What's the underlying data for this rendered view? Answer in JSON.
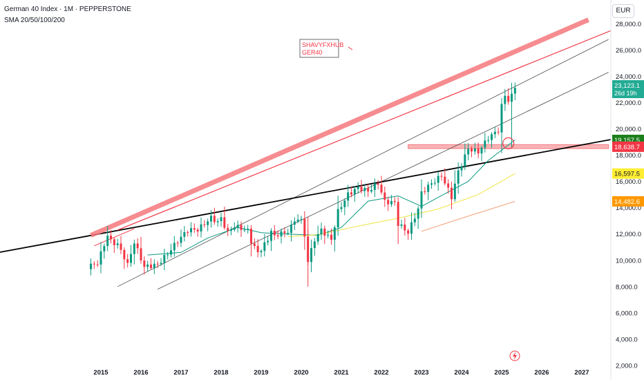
{
  "header": {
    "title": "German 40 Index · 1M · PEPPERSTONE",
    "indicator": "SMA 20/50/100/200"
  },
  "currency_button": "EUR",
  "annotation": {
    "line1": "SHAVYFXHUB",
    "line2": "GER40"
  },
  "colors": {
    "up": "#089981",
    "down": "#f23645",
    "price_tag": "#22ab94",
    "sma20": "#089981",
    "sma50": "#f0e442",
    "sma100": "#f4a07a",
    "resistance": "#f4787c",
    "trend": "#000000"
  },
  "chart_data": {
    "type": "candlestick",
    "x_ticks": [
      "2015",
      "2016",
      "2017",
      "2018",
      "2019",
      "2020",
      "2021",
      "2022",
      "2023",
      "2024",
      "2025",
      "2026",
      "2027"
    ],
    "y_ticks": [
      "2,000.0",
      "4,000.0",
      "6,000.0",
      "8,000.0",
      "10,000.0",
      "12,000.0",
      "14,000.0",
      "16,000.0",
      "18,000.0",
      "20,000.0",
      "22,000.0",
      "24,000.0",
      "26,000.0",
      "28,000.0"
    ],
    "ylim": [
      1000,
      29800
    ],
    "price_labels": [
      {
        "value": 23123.1,
        "text": "23,123.1",
        "sub": "26d 19h",
        "color": "#22ab94",
        "text_color": "#ffffff"
      },
      {
        "value": 19157.5,
        "text": "19,157.5",
        "color": "#1b7f1b",
        "text_color": "#ffffff"
      },
      {
        "value": 18638.7,
        "text": "18,638.7",
        "color": "#f23645",
        "text_color": "#ffffff"
      },
      {
        "value": 16597.5,
        "text": "16,597.5",
        "color": "#ffee33",
        "text_color": "#131722"
      },
      {
        "value": 14482.6,
        "text": "14,482.6",
        "color": "#ff9800",
        "text_color": "#ffffff"
      }
    ],
    "anchors": [
      [
        "2014-09",
        9500
      ],
      [
        "2014-12",
        9800
      ],
      [
        "2015-03",
        11900
      ],
      [
        "2015-04",
        11450
      ],
      [
        "2015-06",
        11200
      ],
      [
        "2015-08",
        10250
      ],
      [
        "2015-09",
        9650
      ],
      [
        "2015-11",
        11380
      ],
      [
        "2015-12",
        10740
      ],
      [
        "2016-02",
        9500
      ],
      [
        "2016-06",
        9680
      ],
      [
        "2016-09",
        10510
      ],
      [
        "2016-12",
        11480
      ],
      [
        "2017-03",
        12310
      ],
      [
        "2017-06",
        12330
      ],
      [
        "2017-10",
        13230
      ],
      [
        "2017-12",
        12920
      ],
      [
        "2018-01",
        13190
      ],
      [
        "2018-03",
        12100
      ],
      [
        "2018-05",
        12600
      ],
      [
        "2018-09",
        12250
      ],
      [
        "2018-10",
        11450
      ],
      [
        "2018-12",
        10560
      ],
      [
        "2019-03",
        11530
      ],
      [
        "2019-04",
        12340
      ],
      [
        "2019-05",
        11730
      ],
      [
        "2019-07",
        12190
      ],
      [
        "2019-08",
        11940
      ],
      [
        "2019-12",
        13250
      ],
      [
        "2020-01",
        12980
      ],
      [
        "2020-02",
        11890
      ],
      [
        "2020-03",
        9940
      ],
      [
        "2020-05",
        11590
      ],
      [
        "2020-07",
        12310
      ],
      [
        "2020-10",
        11560
      ],
      [
        "2020-12",
        13720
      ],
      [
        "2021-03",
        15010
      ],
      [
        "2021-06",
        15530
      ],
      [
        "2021-09",
        15260
      ],
      [
        "2021-12",
        15880
      ],
      [
        "2022-02",
        14460
      ],
      [
        "2022-05",
        14390
      ],
      [
        "2022-06",
        12780
      ],
      [
        "2022-09",
        12110
      ],
      [
        "2022-12",
        13920
      ],
      [
        "2023-01",
        15130
      ],
      [
        "2023-03",
        15630
      ],
      [
        "2023-07",
        16450
      ],
      [
        "2023-10",
        14810
      ],
      [
        "2023-12",
        16750
      ],
      [
        "2024-03",
        18490
      ],
      [
        "2024-06",
        18240
      ],
      [
        "2024-09",
        19320
      ],
      [
        "2024-12",
        19900
      ],
      [
        "2025-01",
        21730
      ],
      [
        "2025-02",
        22550
      ],
      [
        "2025-03",
        22160
      ],
      [
        "2025-04",
        22500
      ],
      [
        "2025-05",
        23123
      ]
    ],
    "sma": [
      {
        "period": 20,
        "color": "#089981",
        "points": [
          [
            "2016-03",
            10400
          ],
          [
            "2017-01",
            10600
          ],
          [
            "2017-09",
            11700
          ],
          [
            "2018-06",
            12500
          ],
          [
            "2019-01",
            12100
          ],
          [
            "2019-09",
            12000
          ],
          [
            "2020-06",
            11900
          ],
          [
            "2021-01",
            12500
          ],
          [
            "2021-09",
            14500
          ],
          [
            "2022-06",
            14900
          ],
          [
            "2023-01",
            14100
          ],
          [
            "2023-09",
            15200
          ],
          [
            "2024-03",
            16000
          ],
          [
            "2024-09",
            17600
          ],
          [
            "2025-05",
            19157.5
          ]
        ]
      },
      {
        "period": 50,
        "color": "#f0e442",
        "points": [
          [
            "2019-09",
            11800
          ],
          [
            "2020-06",
            11950
          ],
          [
            "2021-06",
            12600
          ],
          [
            "2022-06",
            13200
          ],
          [
            "2023-06",
            13900
          ],
          [
            "2024-06",
            15000
          ],
          [
            "2025-05",
            16597.5
          ]
        ]
      },
      {
        "period": 100,
        "color": "#f4a07a",
        "points": [
          [
            "2023-01",
            12200
          ],
          [
            "2024-01",
            13200
          ],
          [
            "2025-05",
            14482.6
          ]
        ]
      }
    ],
    "lines": [
      {
        "name": "Resistance",
        "color": "#f4787c",
        "from": [
          "2014-10",
          11900
        ],
        "to": [
          "2027-03",
          28300
        ]
      }
    ],
    "zones": [
      {
        "name": "Support",
        "color": "#f4787c",
        "from": "2022-09",
        "to": "2027-09",
        "low": 18500,
        "high": 18800
      }
    ],
    "grid": false
  }
}
